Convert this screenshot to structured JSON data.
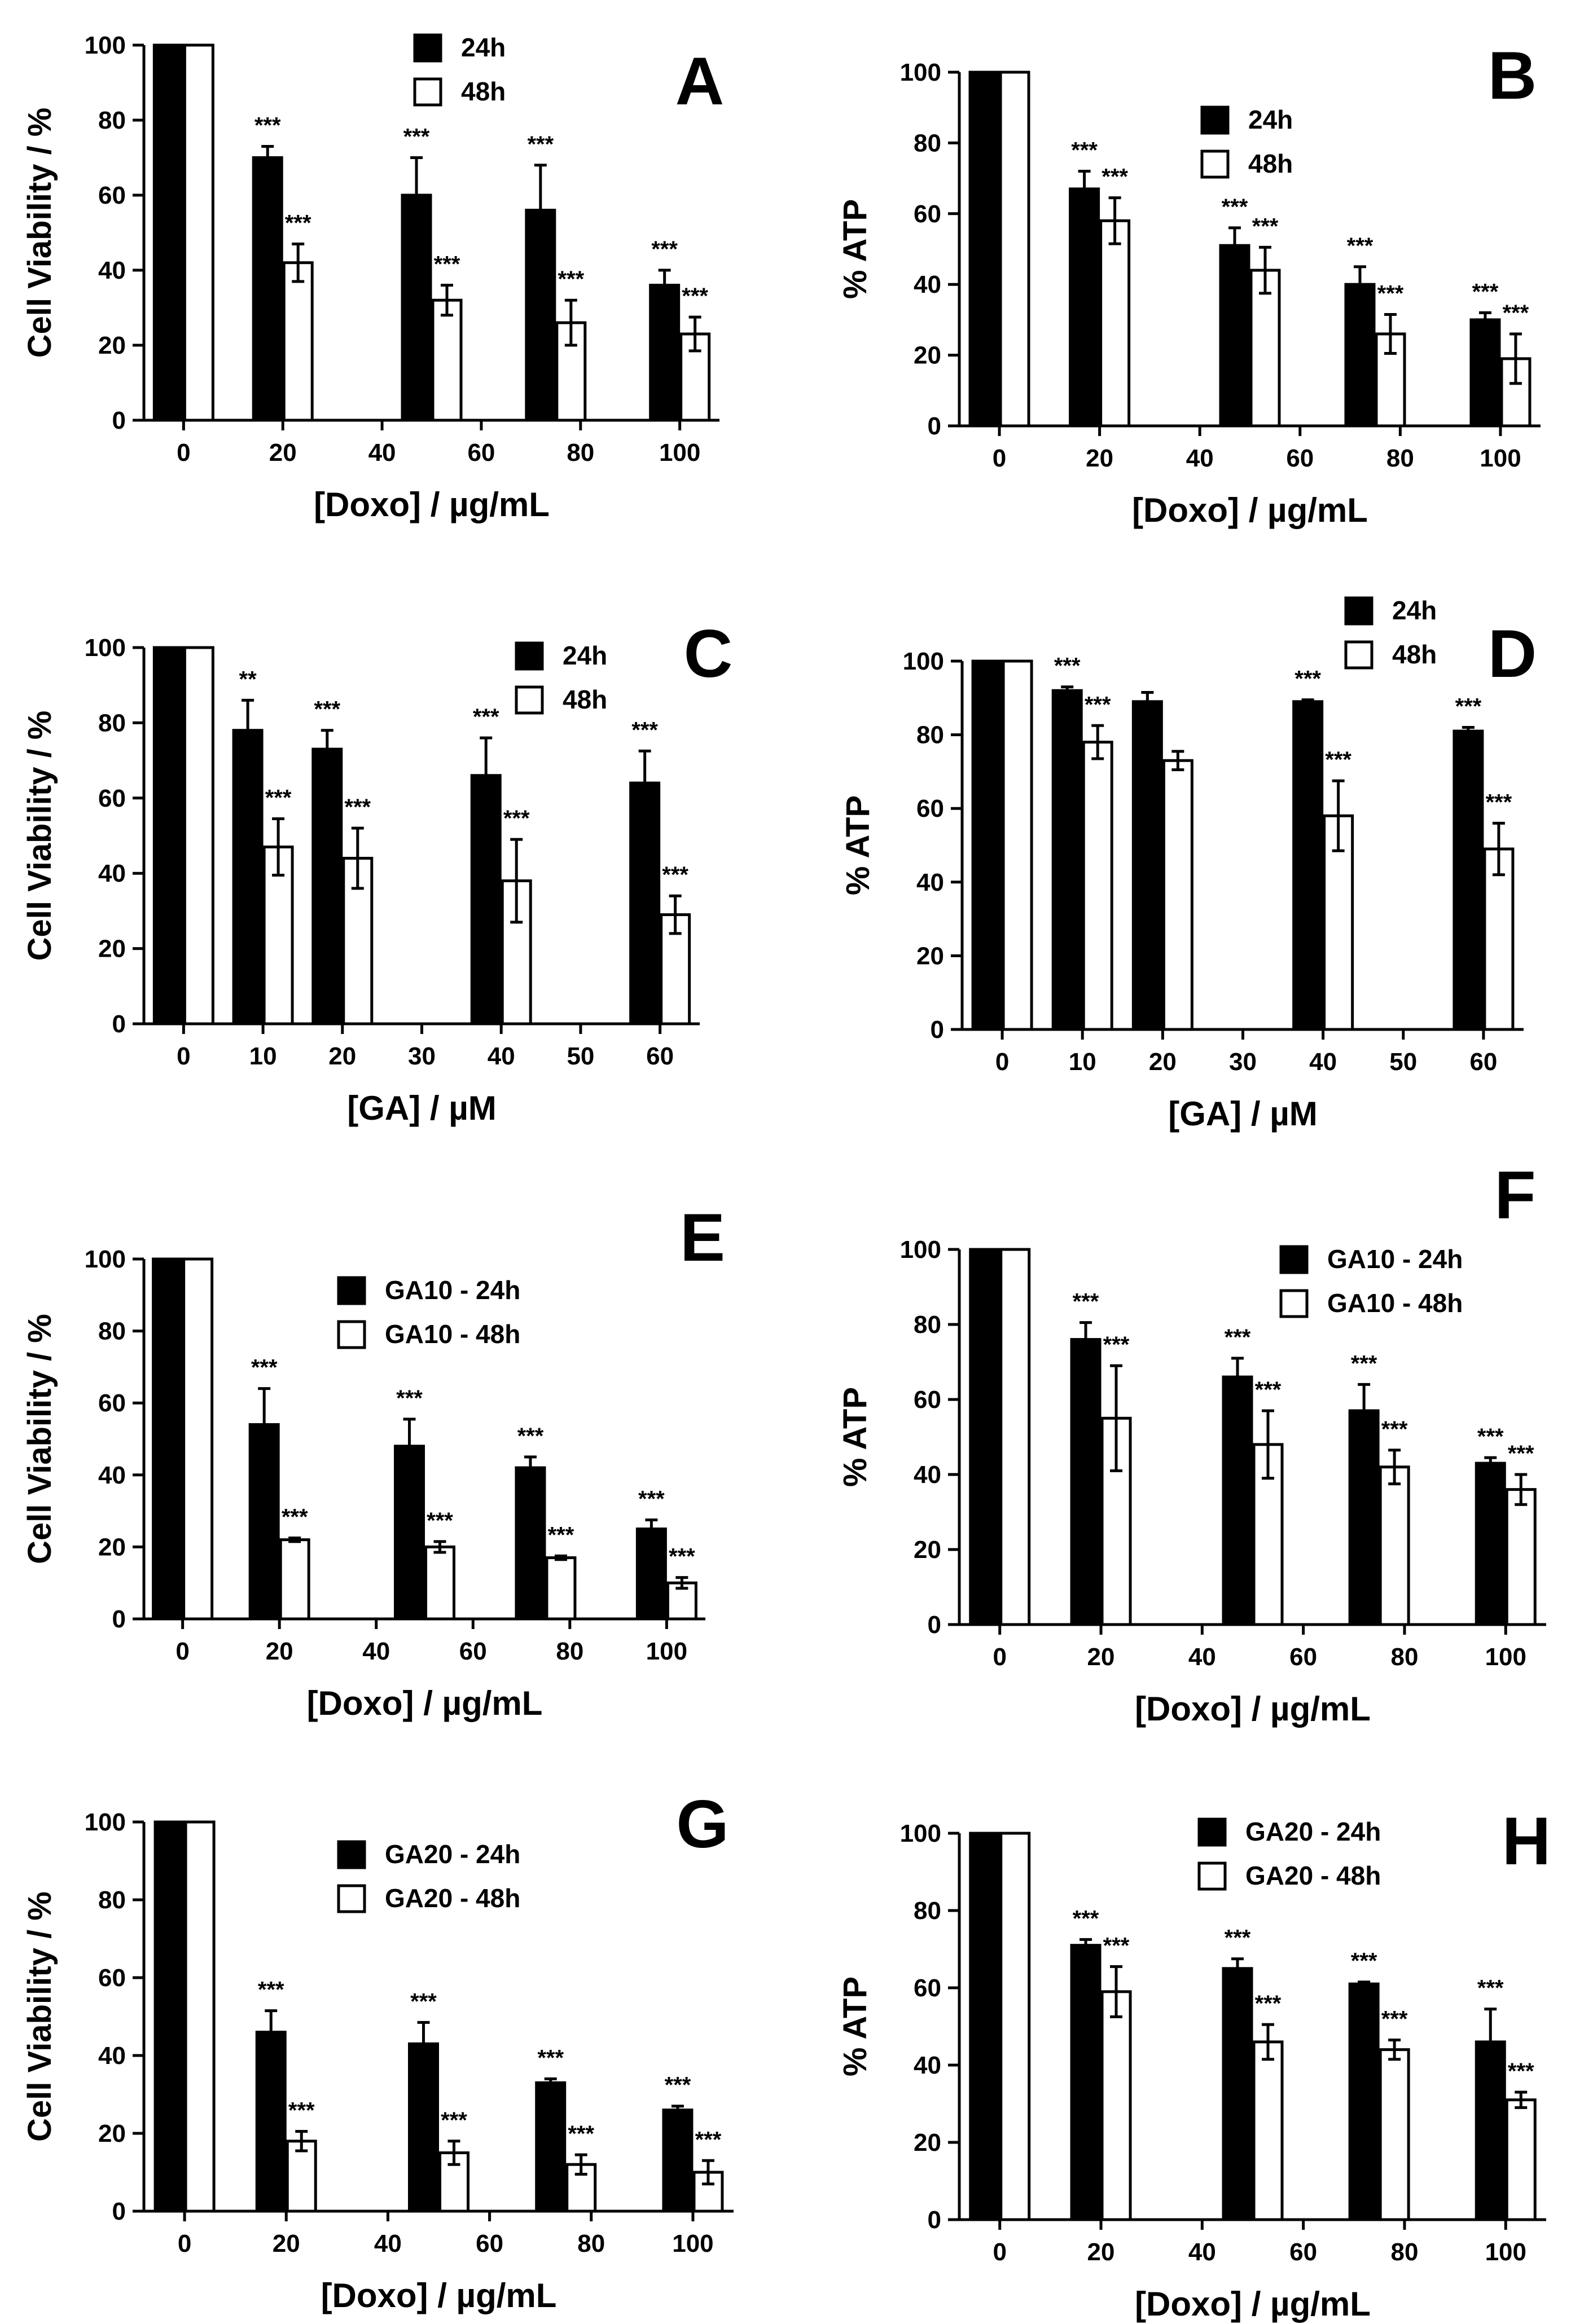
{
  "colors": {
    "series_24h": "#000000",
    "series_48h": "#ffffff",
    "stroke": "#000000"
  },
  "chart_data": [
    {
      "panel": "A",
      "type": "bar",
      "ylabel": "Cell Viability  /  %",
      "xlabel": "[Doxo] / µg/mL",
      "ylim": [
        0,
        100
      ],
      "yticks": [
        0,
        20,
        40,
        60,
        80,
        100
      ],
      "xlim": [
        -8,
        108
      ],
      "xticks": [
        0,
        20,
        40,
        60,
        80,
        100
      ],
      "x": [
        0,
        20,
        50,
        75,
        100
      ],
      "legend_position": "top-center",
      "series": [
        {
          "name": "24h",
          "values": [
            100,
            70,
            60,
            56,
            36
          ],
          "errors": [
            0,
            3,
            10,
            12,
            4
          ],
          "sig": [
            "",
            "***",
            "***",
            "***",
            "***"
          ]
        },
        {
          "name": "48h",
          "values": [
            100,
            42,
            32,
            26,
            23
          ],
          "errors": [
            0,
            5,
            4,
            6,
            4.5
          ],
          "sig": [
            "",
            "***",
            "***",
            "***",
            "***"
          ]
        }
      ]
    },
    {
      "panel": "B",
      "type": "bar",
      "ylabel": "% ATP",
      "xlabel": "[Doxo] / µg/mL",
      "ylim": [
        0,
        100
      ],
      "yticks": [
        0,
        20,
        40,
        60,
        80,
        100
      ],
      "xlim": [
        -8,
        108
      ],
      "xticks": [
        0,
        20,
        40,
        60,
        80,
        100
      ],
      "x": [
        0,
        20,
        50,
        75,
        100
      ],
      "legend_position": "top-center",
      "series": [
        {
          "name": "24h",
          "values": [
            100,
            67,
            51,
            40,
            30
          ],
          "errors": [
            0,
            5,
            5,
            5,
            2
          ],
          "sig": [
            "",
            "***",
            "***",
            "***",
            "***"
          ]
        },
        {
          "name": "48h",
          "values": [
            100,
            58,
            44,
            26,
            19
          ],
          "errors": [
            0,
            6.5,
            6.5,
            5.5,
            7
          ],
          "sig": [
            "",
            "***",
            "***",
            "***",
            "***"
          ]
        }
      ]
    },
    {
      "panel": "C",
      "type": "bar",
      "ylabel": "Cell Viability  /  %",
      "xlabel": "[GA] / µM",
      "ylim": [
        0,
        100
      ],
      "yticks": [
        0,
        20,
        40,
        60,
        80,
        100
      ],
      "xlim": [
        -5,
        65
      ],
      "xticks": [
        0,
        10,
        20,
        30,
        40,
        50,
        60
      ],
      "x": [
        0,
        10,
        20,
        40,
        60
      ],
      "legend_position": "top-center",
      "series": [
        {
          "name": "24h",
          "values": [
            100,
            78,
            73,
            66,
            64
          ],
          "errors": [
            0,
            8,
            5,
            10,
            8.5
          ],
          "sig": [
            "",
            "**",
            "***",
            "***",
            "***"
          ]
        },
        {
          "name": "48h",
          "values": [
            100,
            47,
            44,
            38,
            29
          ],
          "errors": [
            0,
            7.5,
            8,
            11,
            5
          ],
          "sig": [
            "",
            "***",
            "***",
            "***",
            "***"
          ]
        }
      ]
    },
    {
      "panel": "D",
      "type": "bar",
      "ylabel": "% ATP",
      "xlabel": "[GA] / µM",
      "ylim": [
        0,
        100
      ],
      "yticks": [
        0,
        20,
        40,
        60,
        80,
        100
      ],
      "xlim": [
        -5,
        65
      ],
      "xticks": [
        0,
        10,
        20,
        30,
        40,
        50,
        60
      ],
      "x": [
        0,
        10,
        20,
        40,
        60
      ],
      "legend_position": "top-right",
      "series": [
        {
          "name": "24h",
          "values": [
            100,
            92,
            89,
            89,
            81
          ],
          "errors": [
            0,
            1,
            2.5,
            0.5,
            1
          ],
          "sig": [
            "",
            "***",
            "",
            "***",
            "***"
          ]
        },
        {
          "name": "48h",
          "values": [
            100,
            78,
            73,
            58,
            49
          ],
          "errors": [
            0,
            4.5,
            2.5,
            9.5,
            7
          ],
          "sig": [
            "",
            "***",
            "",
            "***",
            "***"
          ]
        }
      ]
    },
    {
      "panel": "E",
      "type": "bar",
      "ylabel": "Cell Viability  /  %",
      "xlabel": "[Doxo] / µg/mL",
      "ylim": [
        0,
        100
      ],
      "yticks": [
        0,
        20,
        40,
        60,
        80,
        100
      ],
      "xlim": [
        -8,
        108
      ],
      "xticks": [
        0,
        20,
        40,
        60,
        80,
        100
      ],
      "x": [
        0,
        20,
        50,
        75,
        100
      ],
      "legend_position": "top-center",
      "series": [
        {
          "name": "GA10 - 24h",
          "values": [
            100,
            54,
            48,
            42,
            25
          ],
          "errors": [
            0,
            10,
            7.5,
            3,
            2.5
          ],
          "sig": [
            "",
            "***",
            "***",
            "***",
            "***"
          ]
        },
        {
          "name": "GA10 - 48h",
          "values": [
            100,
            22,
            20,
            17,
            10
          ],
          "errors": [
            0,
            0.5,
            1.5,
            0.5,
            1.5
          ],
          "sig": [
            "",
            "***",
            "***",
            "***",
            "***"
          ]
        }
      ]
    },
    {
      "panel": "F",
      "type": "bar",
      "ylabel": "% ATP",
      "xlabel": "[Doxo] / µg/mL",
      "ylim": [
        0,
        100
      ],
      "yticks": [
        0,
        20,
        40,
        60,
        80,
        100
      ],
      "xlim": [
        -8,
        108
      ],
      "xticks": [
        0,
        20,
        40,
        60,
        80,
        100
      ],
      "x": [
        0,
        20,
        50,
        75,
        100
      ],
      "legend_position": "top-right",
      "series": [
        {
          "name": "GA10 - 24h",
          "values": [
            100,
            76,
            66,
            57,
            43
          ],
          "errors": [
            0,
            4.5,
            5,
            7,
            1.5
          ],
          "sig": [
            "",
            "***",
            "***",
            "***",
            "***"
          ]
        },
        {
          "name": "GA10 - 48h",
          "values": [
            100,
            55,
            48,
            42,
            36
          ],
          "errors": [
            0,
            14,
            9,
            4.5,
            4
          ],
          "sig": [
            "",
            "***",
            "***",
            "***",
            "***"
          ]
        }
      ]
    },
    {
      "panel": "G",
      "type": "bar",
      "ylabel": "Cell Viability  /  %",
      "xlabel": "[Doxo] / µg/mL",
      "ylim": [
        0,
        100
      ],
      "yticks": [
        0,
        20,
        40,
        60,
        80,
        100
      ],
      "xlim": [
        -8,
        108
      ],
      "xticks": [
        0,
        20,
        40,
        60,
        80,
        100
      ],
      "x": [
        0,
        20,
        50,
        75,
        100
      ],
      "legend_position": "top-center",
      "series": [
        {
          "name": "GA20 - 24h",
          "values": [
            100,
            46,
            43,
            33,
            26
          ],
          "errors": [
            0,
            5.5,
            5.5,
            1,
            1
          ],
          "sig": [
            "",
            "***",
            "***",
            "***",
            "***"
          ]
        },
        {
          "name": "GA20 - 48h",
          "values": [
            100,
            18,
            15,
            12,
            10
          ],
          "errors": [
            0,
            2.5,
            3,
            2.5,
            3
          ],
          "sig": [
            "",
            "***",
            "***",
            "***",
            "***"
          ]
        }
      ]
    },
    {
      "panel": "H",
      "type": "bar",
      "ylabel": "% ATP",
      "xlabel": "[Doxo] / µg/mL",
      "ylim": [
        0,
        100
      ],
      "yticks": [
        0,
        20,
        40,
        60,
        80,
        100
      ],
      "xlim": [
        -8,
        108
      ],
      "xticks": [
        0,
        20,
        40,
        60,
        80,
        100
      ],
      "x": [
        0,
        20,
        50,
        75,
        100
      ],
      "legend_position": "top-center",
      "series": [
        {
          "name": "GA20 - 24h",
          "values": [
            100,
            71,
            65,
            61,
            46
          ],
          "errors": [
            0,
            1.5,
            2.5,
            0.5,
            8.5
          ],
          "sig": [
            "",
            "***",
            "***",
            "***",
            "***"
          ]
        },
        {
          "name": "GA20 - 48h",
          "values": [
            100,
            59,
            46,
            44,
            31
          ],
          "errors": [
            0,
            6.5,
            4.5,
            2.5,
            2
          ],
          "sig": [
            "",
            "***",
            "***",
            "***",
            "***"
          ]
        }
      ]
    }
  ]
}
